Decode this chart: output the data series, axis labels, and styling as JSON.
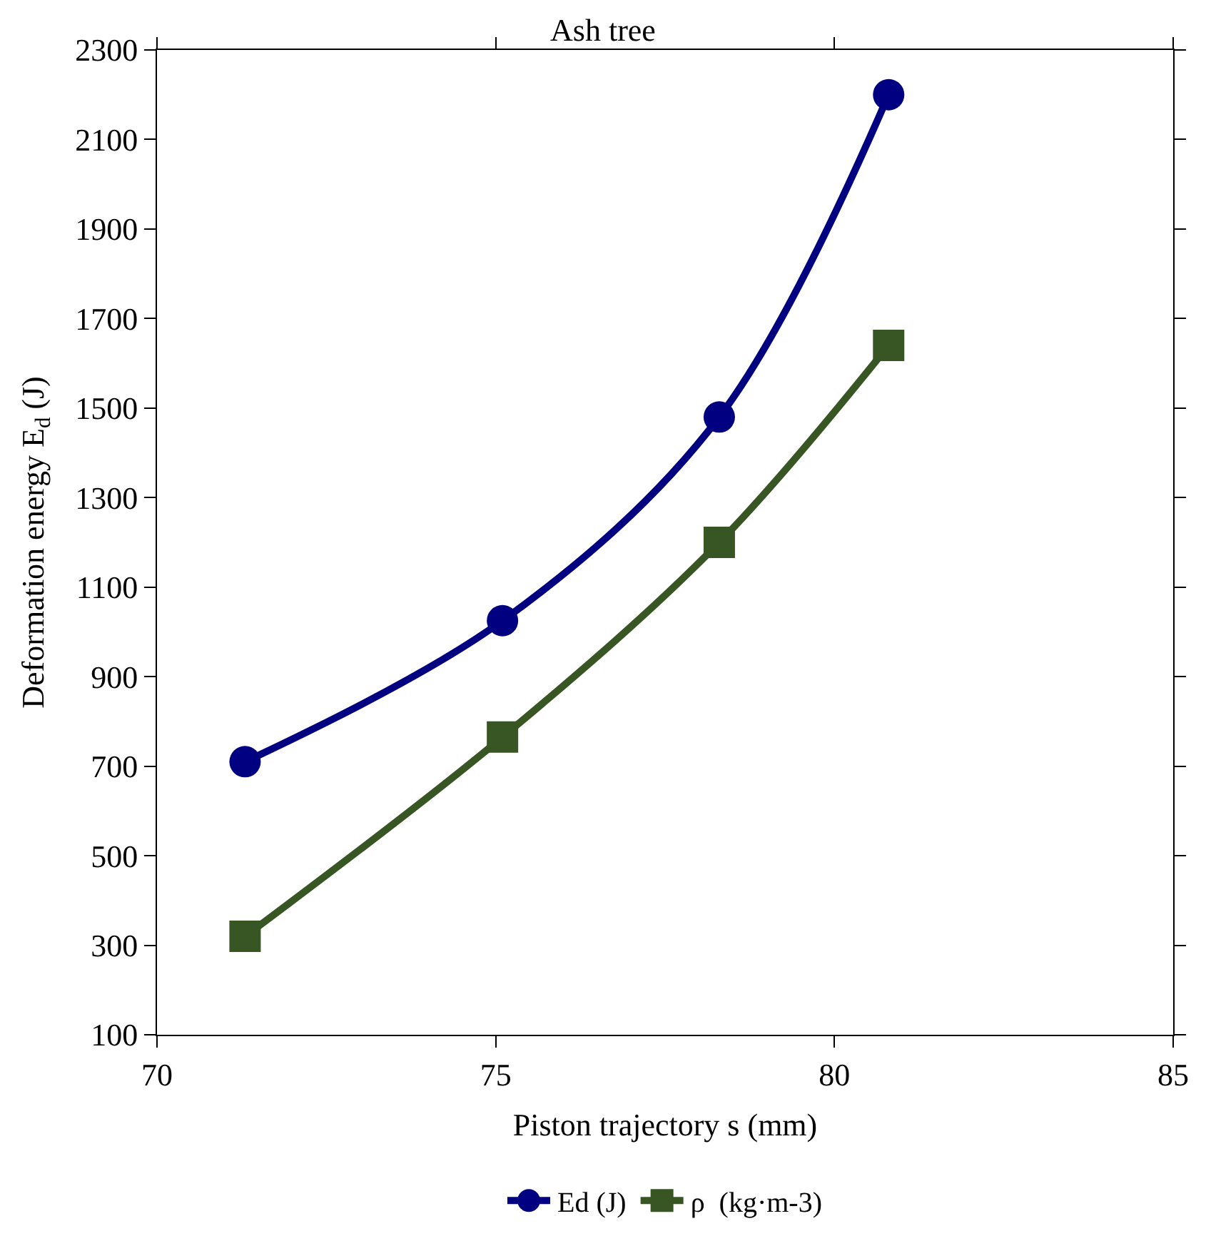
{
  "chart_data": {
    "type": "line",
    "title": "Ash tree",
    "xlabel": "Piston trajectory s (mm)",
    "ylabel": "Deformation energy E$_{d}$ (J)",
    "x": [
      71.3,
      75.1,
      78.3,
      80.8
    ],
    "series": [
      {
        "name": "Ed (J)",
        "color": "#000080",
        "marker": "circle",
        "values": [
          710,
          1025,
          1480,
          2200
        ]
      },
      {
        "name": "ρ  (kg·m-3)",
        "color": "#375623",
        "marker": "square",
        "values": [
          320,
          765,
          1200,
          1640
        ]
      }
    ],
    "xlim": [
      70,
      85
    ],
    "xticks": [
      70,
      75,
      80,
      85
    ],
    "ylim": [
      100,
      2300
    ],
    "yticks": [
      100,
      300,
      500,
      700,
      900,
      1100,
      1300,
      1500,
      1700,
      1900,
      2100,
      2300
    ],
    "grid": false,
    "legend": "bottom",
    "line_style": "solid"
  }
}
